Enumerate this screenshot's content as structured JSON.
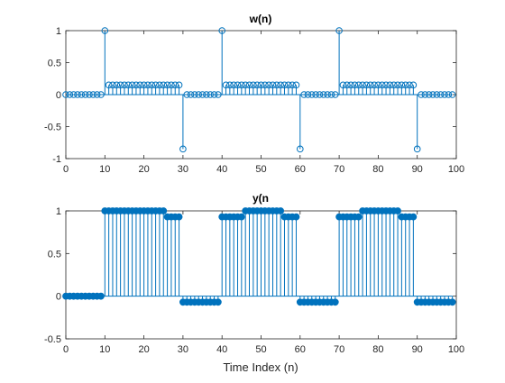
{
  "chart_data": [
    {
      "type": "stem",
      "title": "w(n)",
      "xlabel": "",
      "ylabel": "",
      "xlim": [
        0,
        100
      ],
      "ylim": [
        -1,
        1
      ],
      "xticks": [
        "0",
        "10",
        "20",
        "30",
        "40",
        "50",
        "60",
        "70",
        "80",
        "90",
        "100"
      ],
      "yticks": [
        "1",
        "0.5",
        "0",
        "-0.5",
        "-1"
      ],
      "marker": "open-circle",
      "color": "#0072BD",
      "x": [
        0,
        1,
        2,
        3,
        4,
        5,
        6,
        7,
        8,
        9,
        10,
        11,
        12,
        13,
        14,
        15,
        16,
        17,
        18,
        19,
        20,
        21,
        22,
        23,
        24,
        25,
        26,
        27,
        28,
        29,
        30,
        31,
        32,
        33,
        34,
        35,
        36,
        37,
        38,
        39,
        40,
        41,
        42,
        43,
        44,
        45,
        46,
        47,
        48,
        49,
        50,
        51,
        52,
        53,
        54,
        55,
        56,
        57,
        58,
        59,
        60,
        61,
        62,
        63,
        64,
        65,
        66,
        67,
        68,
        69,
        70,
        71,
        72,
        73,
        74,
        75,
        76,
        77,
        78,
        79,
        80,
        81,
        82,
        83,
        84,
        85,
        86,
        87,
        88,
        89,
        90,
        91,
        92,
        93,
        94,
        95,
        96,
        97,
        98,
        99
      ],
      "values": [
        0,
        0,
        0,
        0,
        0,
        0,
        0,
        0,
        0,
        0,
        1,
        0.15,
        0.15,
        0.15,
        0.15,
        0.15,
        0.15,
        0.15,
        0.15,
        0.15,
        0.15,
        0.15,
        0.15,
        0.15,
        0.15,
        0.15,
        0.15,
        0.15,
        0.15,
        0.15,
        -0.85,
        0,
        0,
        0,
        0,
        0,
        0,
        0,
        0,
        0,
        1,
        0.15,
        0.15,
        0.15,
        0.15,
        0.15,
        0.15,
        0.15,
        0.15,
        0.15,
        0.15,
        0.15,
        0.15,
        0.15,
        0.15,
        0.15,
        0.15,
        0.15,
        0.15,
        0.15,
        -0.85,
        0,
        0,
        0,
        0,
        0,
        0,
        0,
        0,
        0,
        1,
        0.15,
        0.15,
        0.15,
        0.15,
        0.15,
        0.15,
        0.15,
        0.15,
        0.15,
        0.15,
        0.15,
        0.15,
        0.15,
        0.15,
        0.15,
        0.15,
        0.15,
        0.15,
        0.15,
        -0.85,
        0,
        0,
        0,
        0,
        0,
        0,
        0,
        0,
        0
      ]
    },
    {
      "type": "stem",
      "title": "y(n",
      "xlabel": "Time Index (n)",
      "ylabel": "",
      "xlim": [
        0,
        100
      ],
      "ylim": [
        -0.5,
        1
      ],
      "xticks": [
        "0",
        "10",
        "20",
        "30",
        "40",
        "50",
        "60",
        "70",
        "80",
        "90",
        "100"
      ],
      "yticks": [
        "1",
        "0.5",
        "0",
        "-0.5"
      ],
      "marker": "filled-circle",
      "color": "#0072BD",
      "x": [
        0,
        1,
        2,
        3,
        4,
        5,
        6,
        7,
        8,
        9,
        10,
        11,
        12,
        13,
        14,
        15,
        16,
        17,
        18,
        19,
        20,
        21,
        22,
        23,
        24,
        25,
        26,
        27,
        28,
        29,
        30,
        31,
        32,
        33,
        34,
        35,
        36,
        37,
        38,
        39,
        40,
        41,
        42,
        43,
        44,
        45,
        46,
        47,
        48,
        49,
        50,
        51,
        52,
        53,
        54,
        55,
        56,
        57,
        58,
        59,
        60,
        61,
        62,
        63,
        64,
        65,
        66,
        67,
        68,
        69,
        70,
        71,
        72,
        73,
        74,
        75,
        76,
        77,
        78,
        79,
        80,
        81,
        82,
        83,
        84,
        85,
        86,
        87,
        88,
        89,
        90,
        91,
        92,
        93,
        94,
        95,
        96,
        97,
        98,
        99
      ],
      "values": [
        0,
        0,
        0,
        0,
        0,
        0,
        0,
        0,
        0,
        0,
        1,
        1,
        1,
        1,
        1,
        1,
        1,
        1,
        1,
        1,
        1,
        1,
        1,
        1,
        1,
        1,
        0.93,
        0.93,
        0.93,
        0.93,
        -0.07,
        -0.07,
        -0.07,
        -0.07,
        -0.07,
        -0.07,
        -0.07,
        -0.07,
        -0.07,
        -0.07,
        0.93,
        0.93,
        0.93,
        0.93,
        0.93,
        0.93,
        1,
        1,
        1,
        1,
        1,
        1,
        1,
        1,
        1,
        1,
        0.93,
        0.93,
        0.93,
        0.93,
        -0.07,
        -0.07,
        -0.07,
        -0.07,
        -0.07,
        -0.07,
        -0.07,
        -0.07,
        -0.07,
        -0.07,
        0.93,
        0.93,
        0.93,
        0.93,
        0.93,
        0.93,
        1,
        1,
        1,
        1,
        1,
        1,
        1,
        1,
        1,
        1,
        0.93,
        0.93,
        0.93,
        0.93,
        -0.07,
        -0.07,
        -0.07,
        -0.07,
        -0.07,
        -0.07,
        -0.07,
        -0.07,
        -0.07,
        -0.07
      ]
    }
  ]
}
